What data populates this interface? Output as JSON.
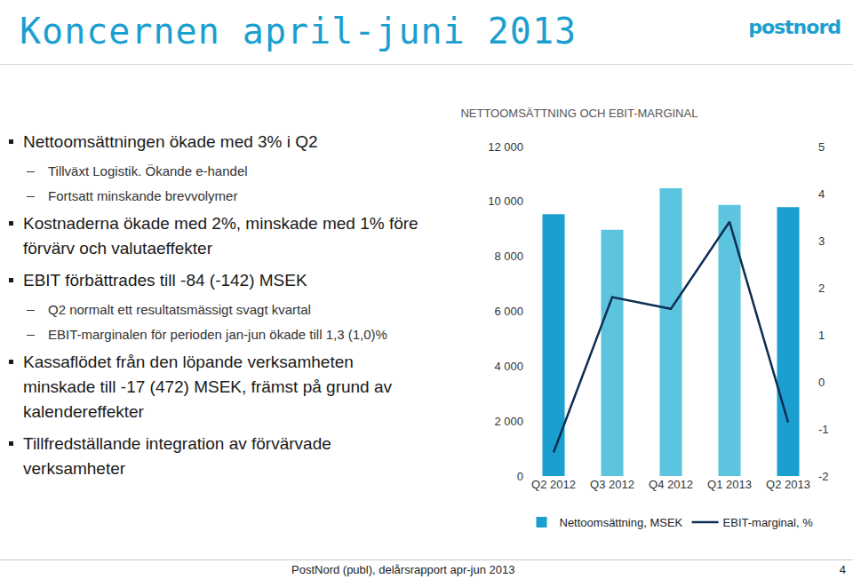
{
  "slide": {
    "title": "Koncernen april-juni 2013",
    "logo": "postnord",
    "bullets": [
      {
        "text": "Nettoomsättningen ökade med 3% i Q2",
        "sub": [
          "Tillväxt Logistik. Ökande e-handel",
          "Fortsatt minskande brevvolymer"
        ]
      },
      {
        "text": "Kostnaderna ökade med 2%, minskade med 1% före förvärv och valutaeffekter",
        "sub": []
      },
      {
        "text": "EBIT förbättrades till -84 (-142) MSEK",
        "sub": [
          "Q2 normalt ett resultatsmässigt svagt kvartal",
          "EBIT-marginalen för perioden jan-jun ökade till 1,3 (1,0)%"
        ]
      },
      {
        "text": "Kassaflödet från den löpande verksamheten minskade till -17 (472) MSEK, främst på grund av kalendereffekter",
        "sub": []
      },
      {
        "text": "Tillfredställande integration av förvärvade verksamheter",
        "sub": []
      }
    ],
    "footer": "PostNord (publ), delårsrapport apr-jun 2013",
    "page": 4
  },
  "chart_data": {
    "type": "bar",
    "title": "NETTOOMSÄTTNING OCH EBIT-MARGINAL",
    "categories": [
      "Q2 2012",
      "Q3 2012",
      "Q4 2012",
      "Q1 2013",
      "Q2 2013"
    ],
    "series": [
      {
        "name": "Nettoomsättning, MSEK",
        "type": "bar",
        "colors": [
          "#1b9fd0",
          "#5cc4de",
          "#5cc4de",
          "#5cc4de",
          "#1b9fd0"
        ],
        "values": [
          9530,
          8970,
          10480,
          9870,
          9790
        ]
      },
      {
        "name": "EBIT-marginal, %",
        "type": "line",
        "color": "#0d2d52",
        "axis": "y2",
        "values": [
          -1.5,
          1.8,
          1.55,
          3.4,
          -0.86
        ]
      }
    ],
    "ylim": [
      0,
      12000
    ],
    "yticks": [
      0,
      {
        "value": 2000,
        "label": "2 000"
      },
      {
        "value": 4000,
        "label": "4 000"
      },
      {
        "value": 6000,
        "label": "6 000"
      },
      {
        "value": 8000,
        "label": "8 000"
      },
      {
        "value": 10000,
        "label": "10 000"
      },
      {
        "value": 12000,
        "label": "12 000"
      }
    ],
    "y2lim": [
      -2,
      5
    ],
    "y2ticks": [
      -2,
      -1,
      0,
      1,
      2,
      3,
      4,
      5
    ],
    "grid": false,
    "legend": "bottom"
  }
}
